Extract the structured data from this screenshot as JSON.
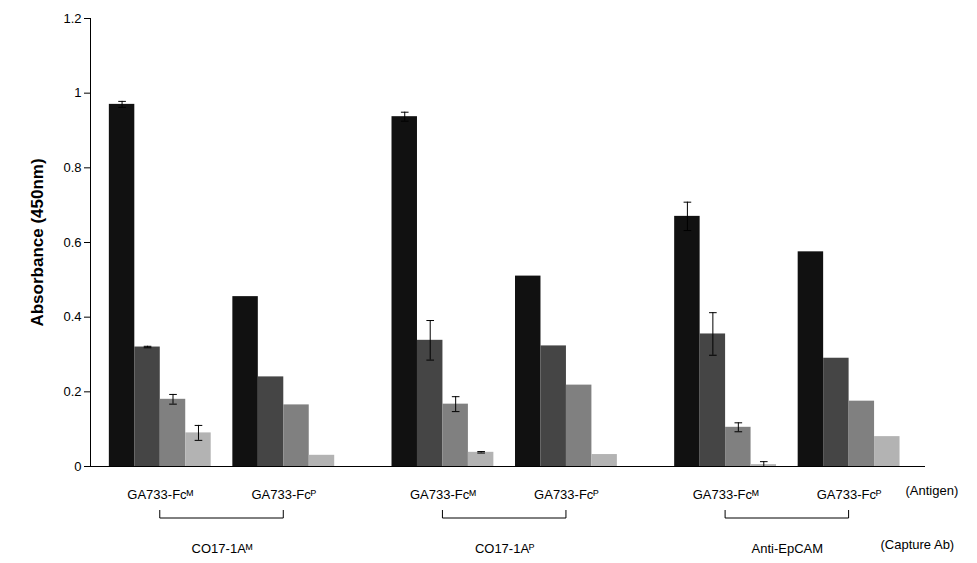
{
  "chart_data": {
    "type": "bar",
    "y_label": "Absorbance (450nm)",
    "x_label": "(Antigen)",
    "group_label": "(Capture Ab)",
    "groups": [
      {
        "label": "CO17-1Aᴹ",
        "categories": [
          "GA733-Fcᴹ",
          "GA733-Fcᴾ"
        ]
      },
      {
        "label": "CO17-1Aᴾ",
        "categories": [
          "GA733-Fcᴹ",
          "GA733-Fcᴾ"
        ]
      },
      {
        "label": "Anti-EpCAM",
        "categories": [
          "GA733-Fcᴹ",
          "GA733-Fcᴾ"
        ]
      }
    ],
    "series": [
      {
        "color": "#111111",
        "values": [
          0.97,
          0.455,
          0.937,
          0.51,
          0.67,
          0.575
        ],
        "errors": [
          0.008,
          null,
          0.012,
          null,
          0.038,
          null
        ]
      },
      {
        "color": "#454545",
        "values": [
          0.32,
          0.24,
          0.338,
          0.323,
          0.355,
          0.29
        ],
        "errors": [
          0.002,
          null,
          0.053,
          null,
          0.057,
          null
        ]
      },
      {
        "color": "#808080",
        "values": [
          0.18,
          0.165,
          0.167,
          0.218,
          0.105,
          0.175
        ],
        "errors": [
          0.013,
          null,
          0.02,
          null,
          0.012,
          null
        ]
      },
      {
        "color": "#b3b3b3",
        "values": [
          0.09,
          0.03,
          0.038,
          0.032,
          0.005,
          0.08
        ],
        "errors": [
          0.02,
          null,
          0.002,
          null,
          0.008,
          null
        ]
      }
    ],
    "ylim": [
      0,
      1.2
    ],
    "yticks": [
      0,
      0.2,
      0.4,
      0.6,
      0.8,
      1,
      1.2
    ],
    "grid": false
  }
}
